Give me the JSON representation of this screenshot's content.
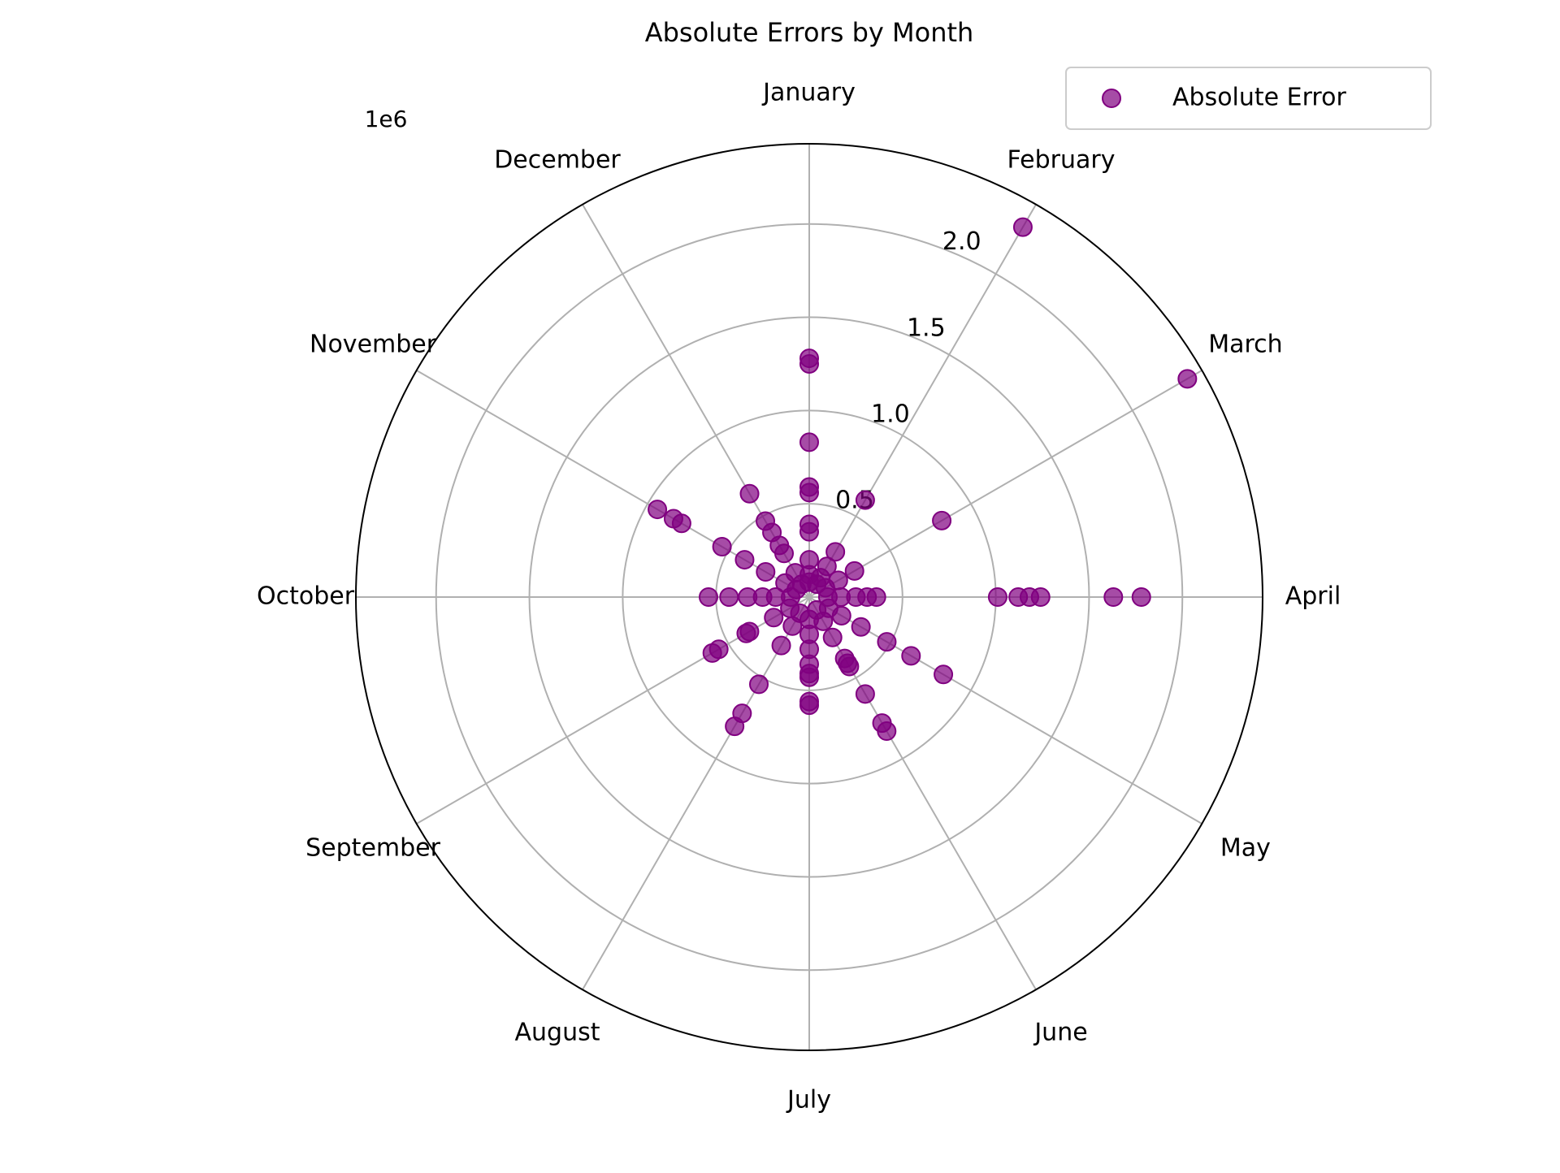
{
  "chart_data": {
    "type": "polar-scatter",
    "title": "Absolute Errors by Month",
    "categories": [
      "January",
      "February",
      "March",
      "April",
      "May",
      "June",
      "July",
      "August",
      "September",
      "October",
      "November",
      "December"
    ],
    "theta_zero": "top",
    "theta_direction": "clockwise",
    "offset_label": "1e6",
    "ylim": [
      0,
      2.43
    ],
    "yticks": [
      0.5,
      {
        "value": 1,
        "label": "1.0"
      },
      1.5,
      {
        "value": 2,
        "label": "2.0"
      }
    ],
    "grid": true,
    "legend": "upper right",
    "series": [
      {
        "name": "Absolute Error",
        "color": "purple",
        "x": [
          "January",
          "January",
          "January",
          "January",
          "January",
          "January",
          "January",
          "January",
          "January",
          "January",
          "February",
          "February",
          "February",
          "February",
          "February",
          "February",
          "March",
          "March",
          "March",
          "March",
          "March",
          "April",
          "April",
          "April",
          "April",
          "April",
          "April",
          "April",
          "April",
          "April",
          "April",
          "April",
          "May",
          "May",
          "May",
          "May",
          "May",
          "May",
          "June",
          "June",
          "June",
          "June",
          "June",
          "June",
          "June",
          "June",
          "June",
          "July",
          "July",
          "July",
          "July",
          "July",
          "July",
          "July",
          "July",
          "August",
          "August",
          "August",
          "August",
          "August",
          "August",
          "September",
          "September",
          "September",
          "September",
          "September",
          "September",
          "October",
          "October",
          "October",
          "October",
          "October",
          "October",
          "November",
          "November",
          "November",
          "November",
          "November",
          "November",
          "November",
          "November",
          "December",
          "December",
          "December",
          "December",
          "December",
          "December",
          "December"
        ],
        "values": [
          1.28,
          1.25,
          0.83,
          0.59,
          0.56,
          0.39,
          0.35,
          0.2,
          0.12,
          0.08,
          2.29,
          0.6,
          0.28,
          0.19,
          0.12,
          0.08,
          2.34,
          0.82,
          0.28,
          0.18,
          0.1,
          1.78,
          1.63,
          1.24,
          1.18,
          1.12,
          1.01,
          0.36,
          0.31,
          0.25,
          0.17,
          0.1,
          0.83,
          0.63,
          0.48,
          0.32,
          0.2,
          0.12,
          0.83,
          0.78,
          0.6,
          0.43,
          0.41,
          0.38,
          0.25,
          0.15,
          0.08,
          0.58,
          0.56,
          0.43,
          0.41,
          0.36,
          0.28,
          0.2,
          0.12,
          0.8,
          0.72,
          0.54,
          0.3,
          0.18,
          0.1,
          0.6,
          0.56,
          0.39,
          0.37,
          0.22,
          0.12,
          0.54,
          0.43,
          0.33,
          0.25,
          0.18,
          0.1,
          0.94,
          0.84,
          0.79,
          0.54,
          0.4,
          0.27,
          0.15,
          0.08,
          0.64,
          0.47,
          0.4,
          0.32,
          0.27,
          0.15,
          0.08
        ]
      }
    ]
  }
}
